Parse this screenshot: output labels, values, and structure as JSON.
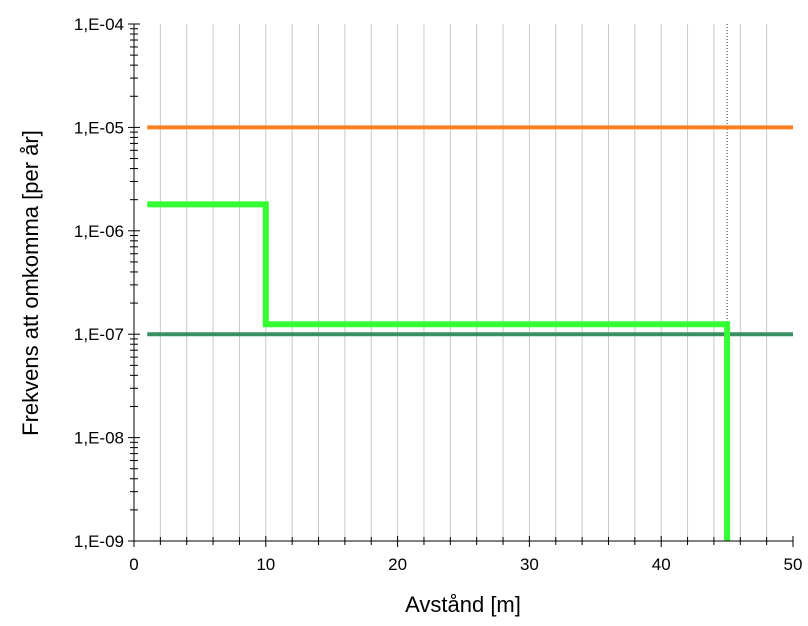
{
  "chart_data": {
    "type": "line",
    "xlabel": "Avstånd [m]",
    "ylabel": "Frekvens att omkomma [per år]",
    "x_scale": "linear",
    "y_scale": "log",
    "xlim": [
      0,
      50
    ],
    "ylim": [
      1e-09,
      0.0001
    ],
    "x_major_ticks": [
      0,
      10,
      20,
      30,
      40,
      50
    ],
    "x_minor_step": 2,
    "x_tick_labels": [
      "0",
      "10",
      "20",
      "30",
      "40",
      "50"
    ],
    "y_major_ticks": [
      1e-09,
      1e-08,
      1e-07,
      1e-06,
      1e-05,
      0.0001
    ],
    "y_tick_labels": [
      "1,E-09",
      "1,E-08",
      "1,E-07",
      "1,E-06",
      "1,E-05",
      "1,E-04"
    ],
    "grid": "vertical",
    "reference_line_x": 45,
    "series": [
      {
        "color": "#ff7f27",
        "x": [
          1,
          50
        ],
        "y": [
          1e-05,
          1e-05
        ]
      },
      {
        "color": "#3a8f63",
        "x": [
          1,
          50
        ],
        "y": [
          1e-07,
          1e-07
        ]
      },
      {
        "color": "#33ff33",
        "step": true,
        "x": [
          1,
          10,
          10,
          45,
          45
        ],
        "y": [
          1.8e-06,
          1.8e-06,
          1.25e-07,
          1.25e-07,
          1e-09
        ]
      }
    ]
  }
}
